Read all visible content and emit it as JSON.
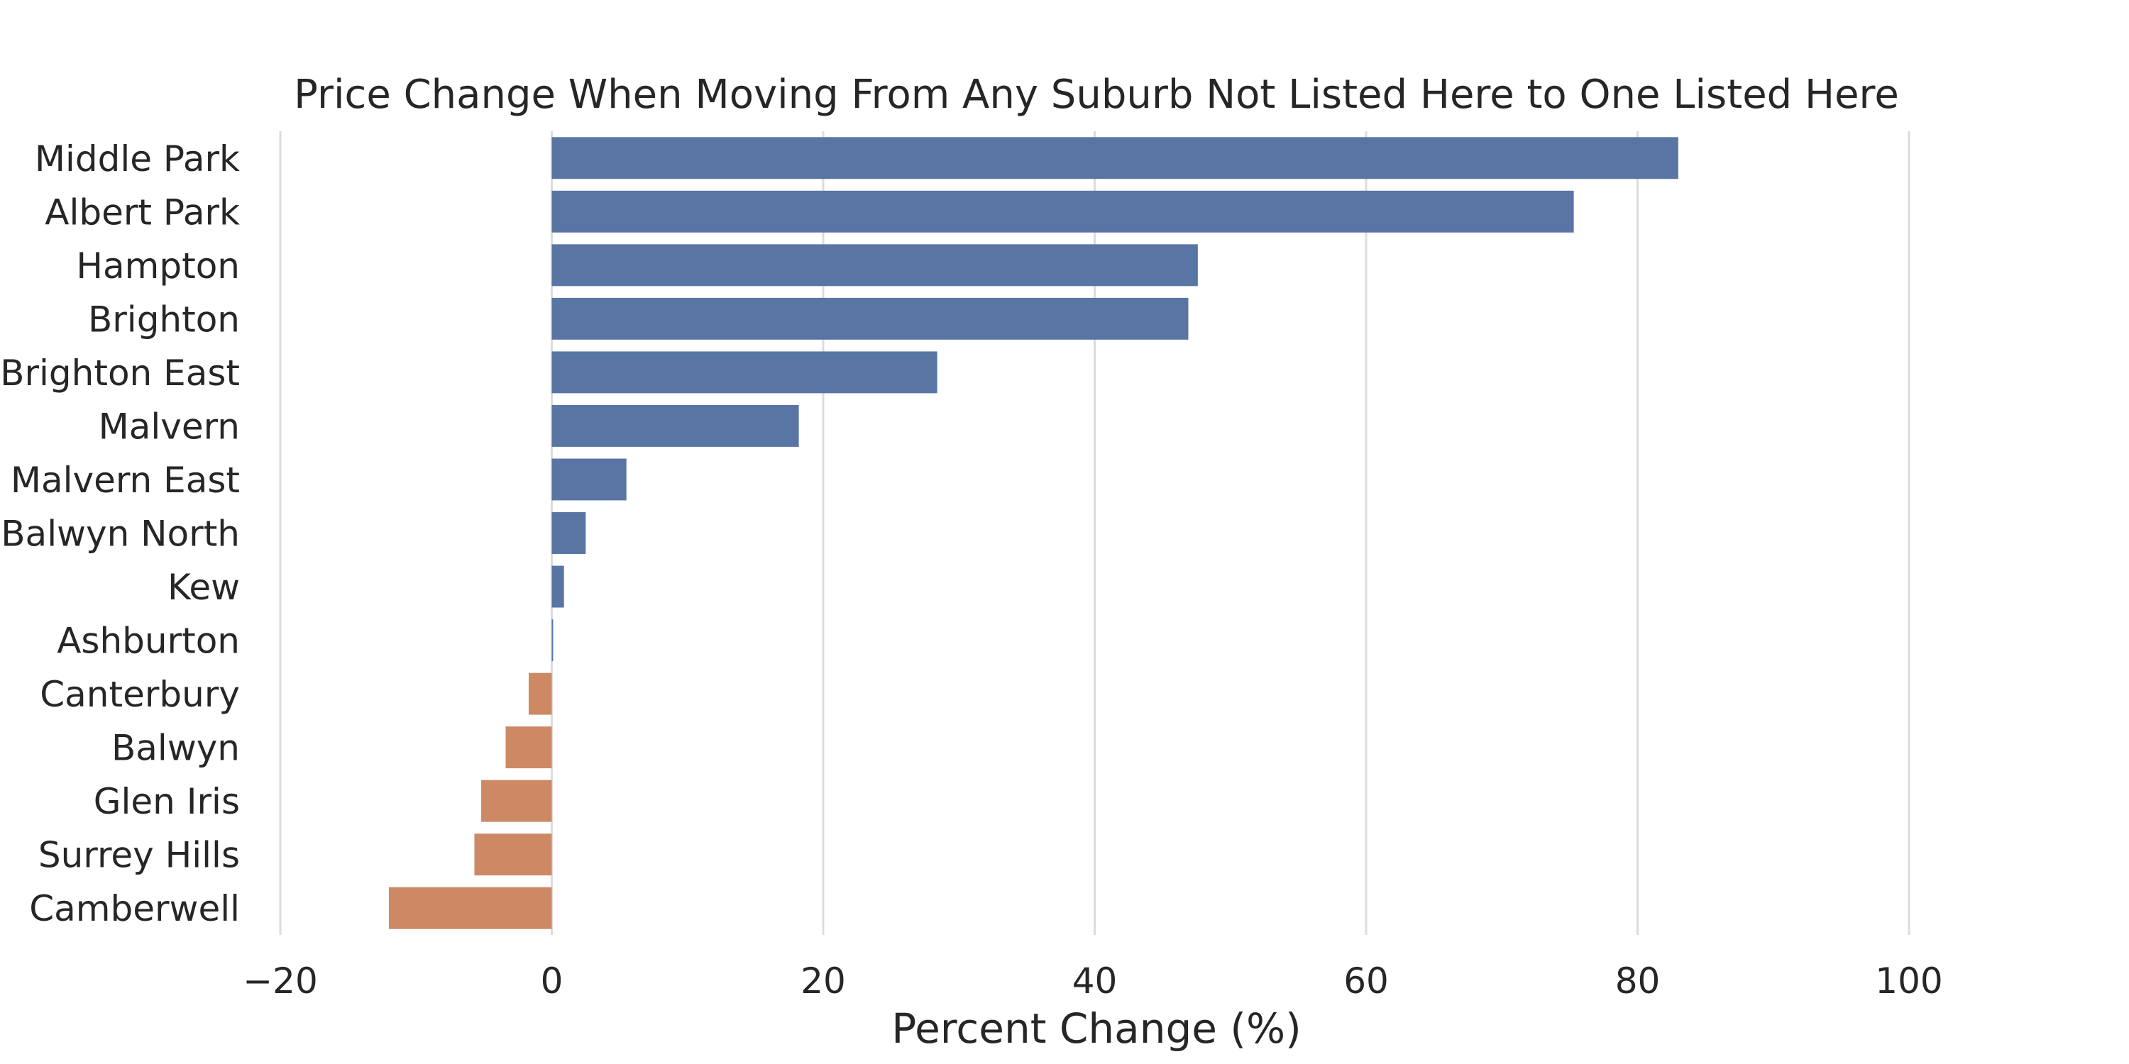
{
  "chart_data": {
    "type": "bar",
    "orientation": "horizontal",
    "title": "Price Change When Moving From Any Suburb Not Listed Here to One Listed Here",
    "xlabel": "Percent Change (%)",
    "ylabel": "",
    "xlim": [
      -20,
      100
    ],
    "xticks": [
      -20,
      0,
      20,
      40,
      60,
      80,
      100
    ],
    "xtick_labels": [
      "−20",
      "0",
      "20",
      "40",
      "60",
      "80",
      "100"
    ],
    "grid": "vertical",
    "legend": "none",
    "categories": [
      "Middle Park",
      "Albert Park",
      "Hampton",
      "Brighton",
      "Brighton East",
      "Malvern",
      "Malvern East",
      "Balwyn North",
      "Kew",
      "Ashburton",
      "Canterbury",
      "Balwyn",
      "Glen Iris",
      "Surrey Hills",
      "Camberwell"
    ],
    "values": [
      83,
      75.3,
      47.6,
      46.9,
      28.4,
      18.2,
      5.5,
      2.5,
      0.9,
      0.1,
      -1.7,
      -3.4,
      -5.2,
      -5.7,
      -12
    ],
    "colors": {
      "positive": "#5875a4",
      "negative": "#cc8963"
    }
  }
}
